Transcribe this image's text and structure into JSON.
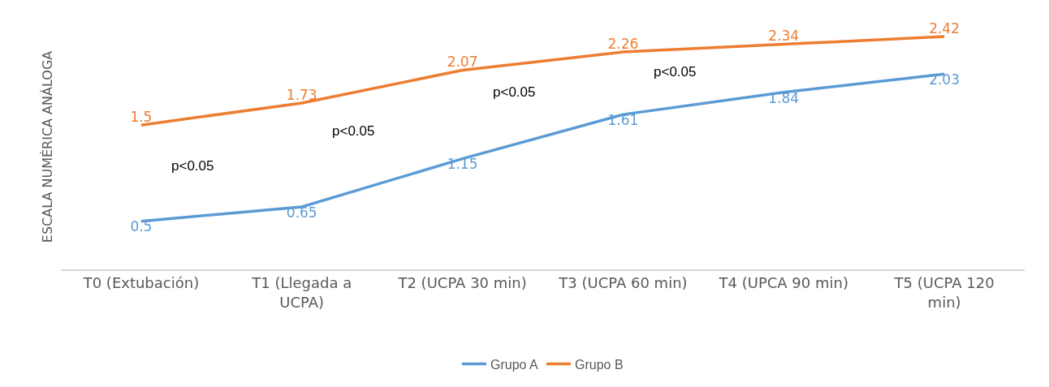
{
  "chart_data": {
    "type": "line",
    "ylabel": "ESCALA NUMÉRICA ANÁLOGA",
    "categories": [
      "T0 (Extubación)",
      "T1 (Llegada a UCPA)",
      "T2 (UCPA 30 min)",
      "T3 (UCPA 60 min)",
      "T4 (UPCA 90 min)",
      "T5 (UCPA 120 min)"
    ],
    "series": [
      {
        "name": "Grupo A",
        "color": "#5b9bd5",
        "values": [
          0.5,
          0.65,
          1.15,
          1.61,
          1.84,
          2.03
        ]
      },
      {
        "name": "Grupo B",
        "color": "#ed7d31",
        "values": [
          1.5,
          1.73,
          2.07,
          2.26,
          2.34,
          2.42
        ]
      }
    ],
    "annotations": [
      "p<0.05",
      "p<0.05",
      "p<0.05",
      "p<0.05"
    ],
    "tick_labels": "x",
    "legend": "bottom",
    "data_labels": true,
    "line_style": "solid"
  }
}
